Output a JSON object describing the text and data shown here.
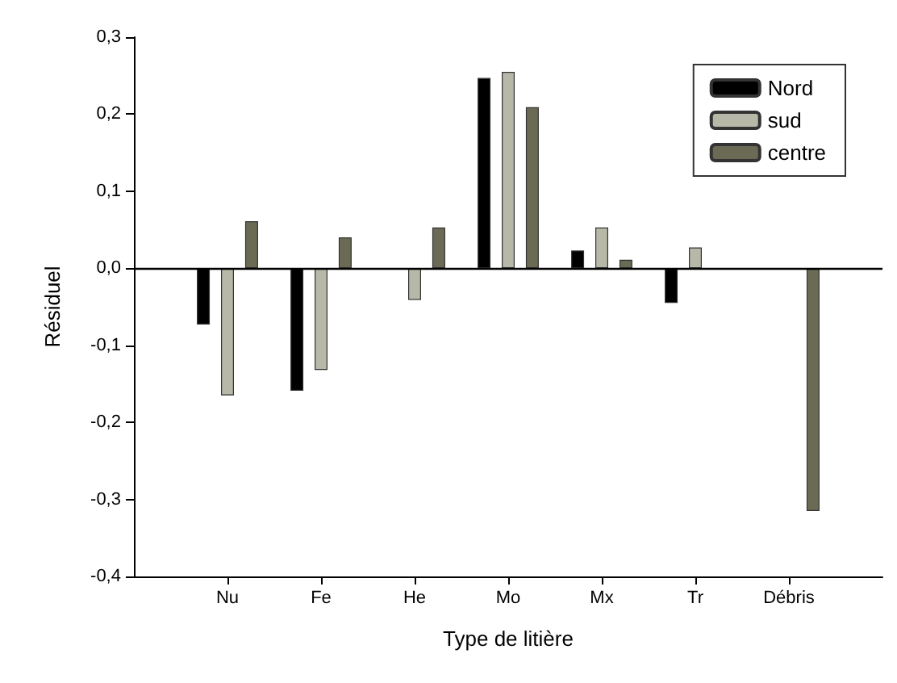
{
  "chart_data": {
    "type": "bar",
    "xlabel": "Type de litière",
    "ylabel": "Résiduel",
    "categories": [
      "Nu",
      "Fe",
      "He",
      "Mo",
      "Mx",
      "Tr",
      "Débris"
    ],
    "series": [
      {
        "name": "Nord",
        "color": "#000000",
        "values": [
          -0.073,
          -0.159,
          null,
          0.247,
          0.023,
          -0.045,
          null
        ]
      },
      {
        "name": "sud",
        "color": "#b8b8a8",
        "values": [
          -0.165,
          -0.132,
          -0.041,
          0.255,
          0.053,
          0.027,
          null
        ]
      },
      {
        "name": "centre",
        "color": "#6b6b55",
        "values": [
          0.061,
          0.04,
          0.053,
          0.209,
          0.011,
          null,
          -0.315
        ]
      }
    ],
    "ylim": [
      -0.4,
      0.3
    ],
    "yticks": [
      {
        "value": -0.4,
        "label": "-0,4"
      },
      {
        "value": -0.3,
        "label": "-0,3"
      },
      {
        "value": -0.2,
        "label": "-0,2"
      },
      {
        "value": -0.1,
        "label": "-0,1"
      },
      {
        "value": 0,
        "label": "0,0"
      },
      {
        "value": 0.1,
        "label": "0,1"
      },
      {
        "value": 0.2,
        "label": "0,2"
      },
      {
        "value": 0.3,
        "label": "0,3"
      }
    ],
    "ref_lines": [
      {
        "axis": "y",
        "value": 0,
        "color": "#000000"
      }
    ],
    "legend": "top right",
    "grid": false
  }
}
